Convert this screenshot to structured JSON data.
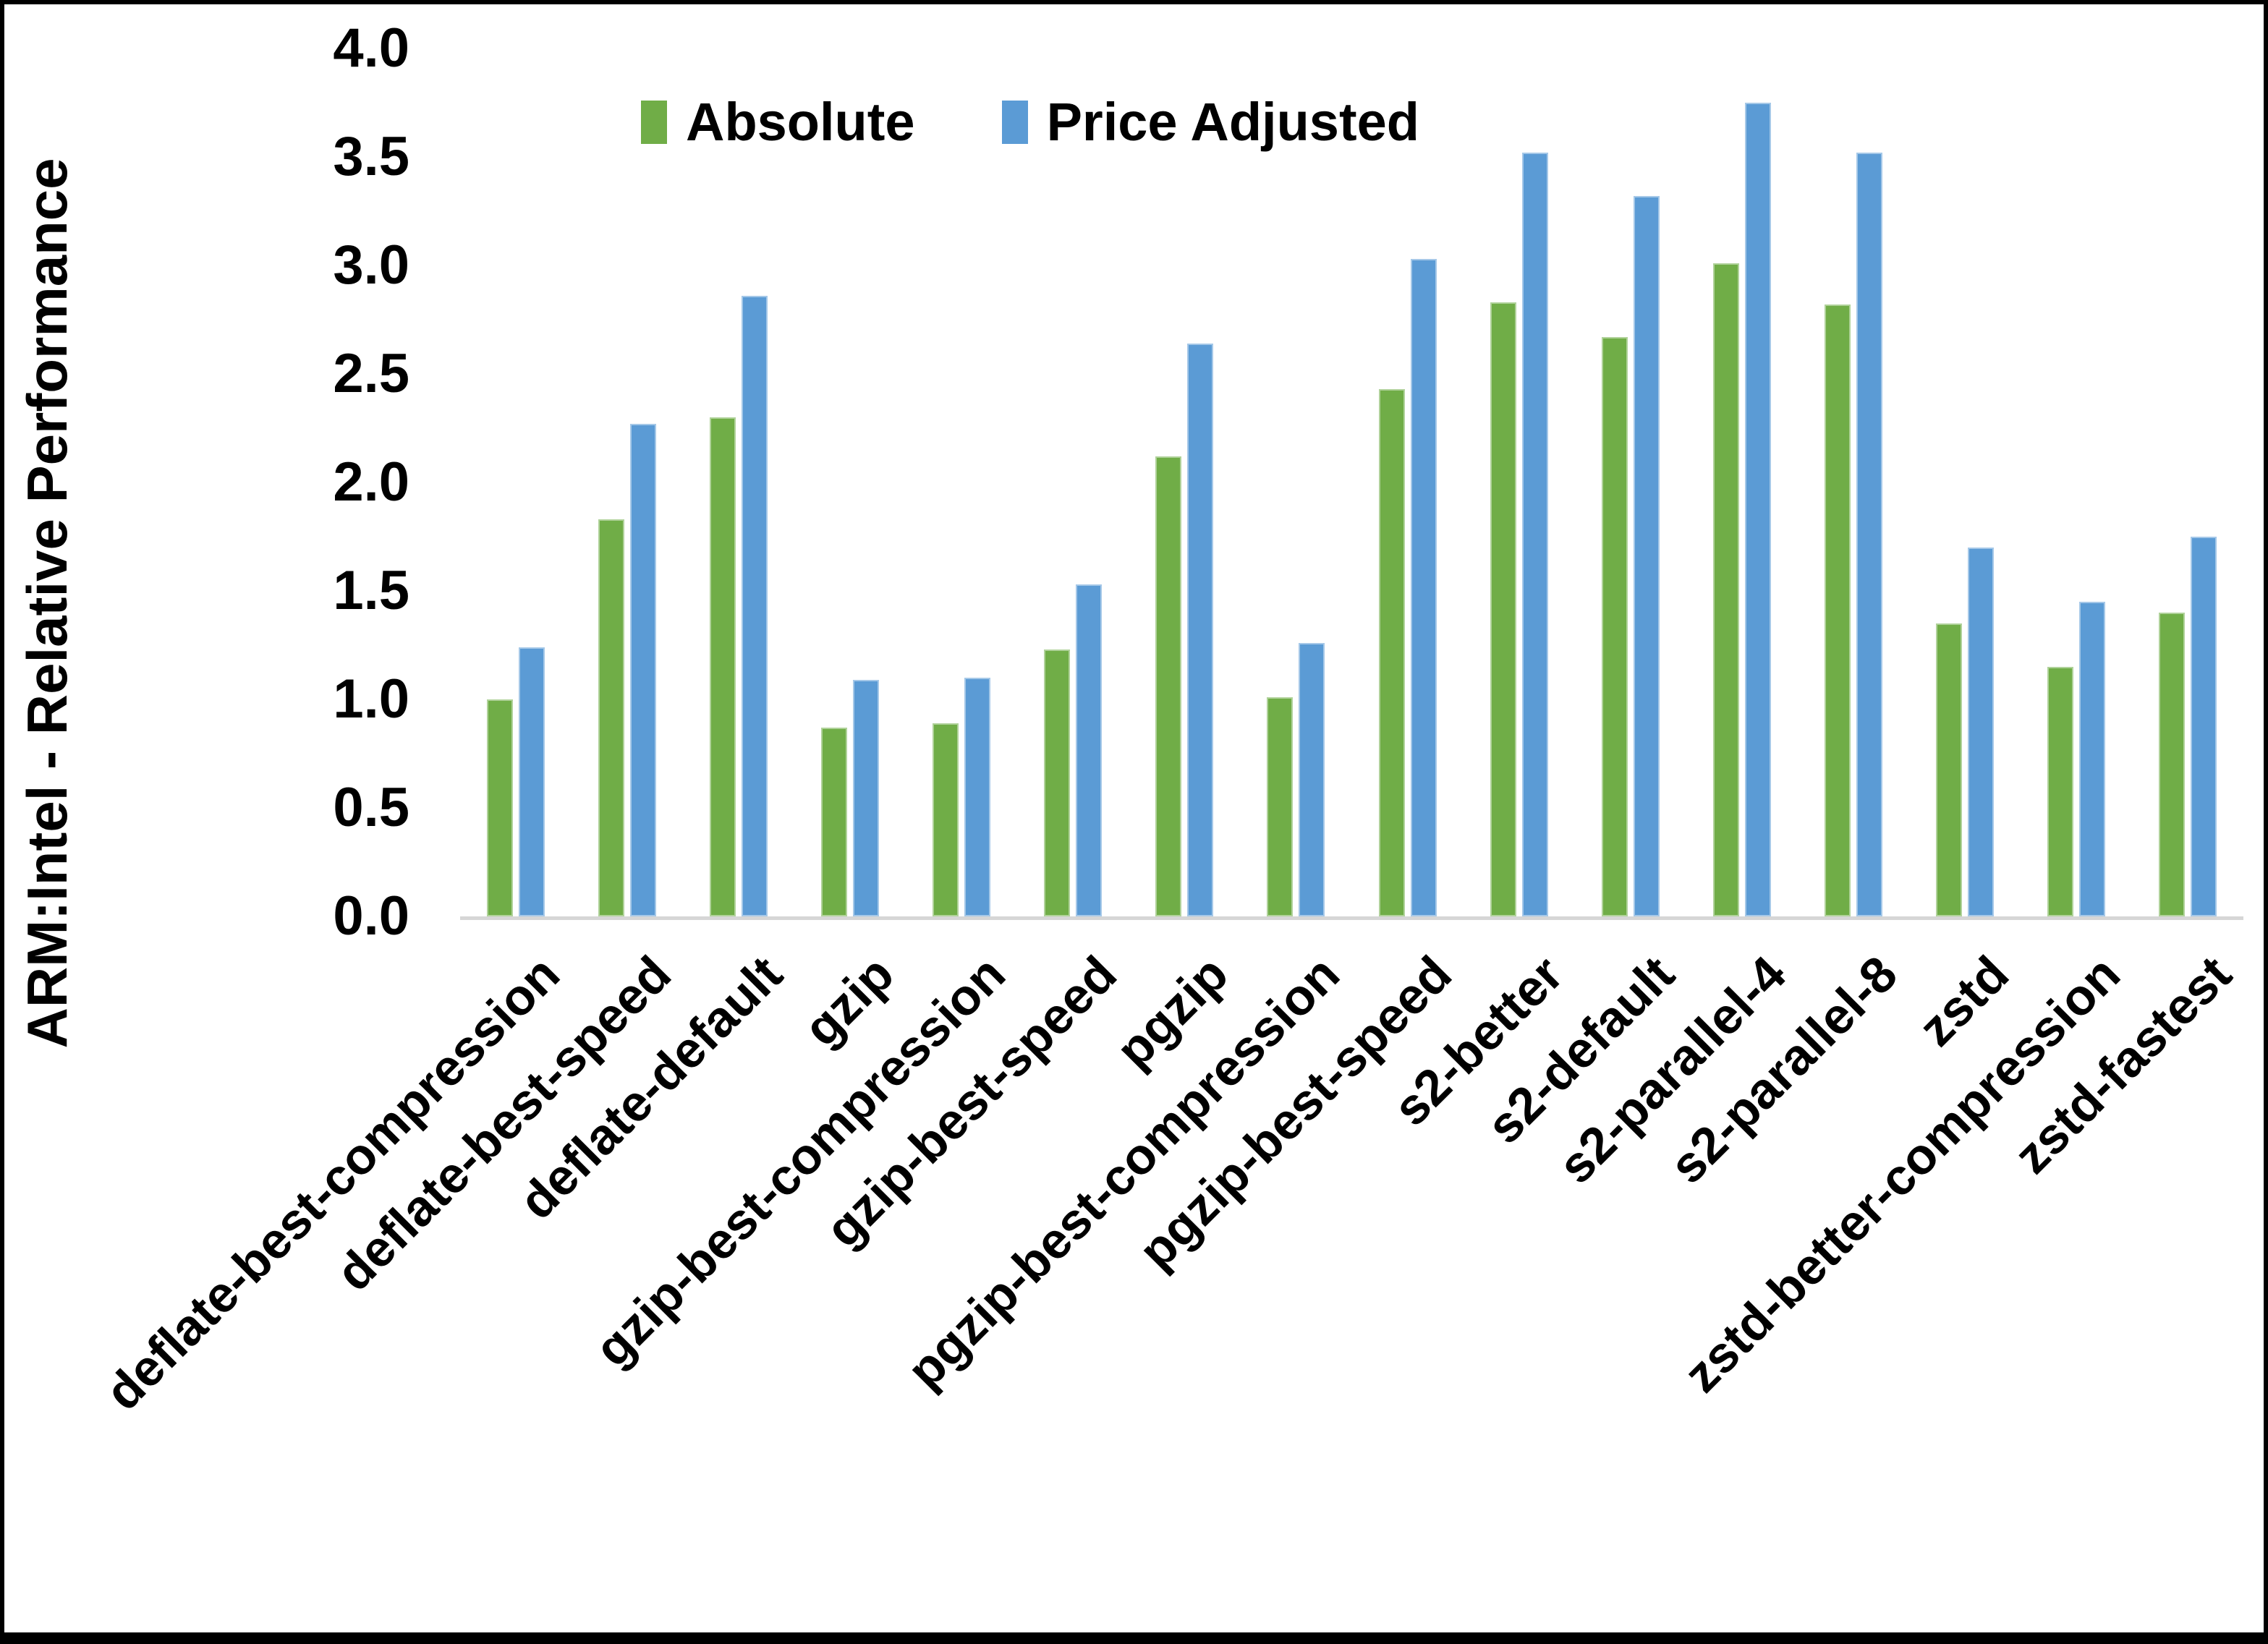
{
  "chart_data": {
    "type": "bar",
    "title": "",
    "ylabel": "ARM:Intel - Relative Performance",
    "xlabel": "",
    "ylim": [
      0,
      4
    ],
    "ytick_step": 0.5,
    "grid": false,
    "legend_position": "top-center",
    "axis_line_color": "#d6d6d6",
    "categories": [
      "deflate-best-compression",
      "deflate-best-speed",
      "deflate-default",
      "gzip",
      "gzip-best-compression",
      "gzip-best-speed",
      "pgzip",
      "pgzip-best-compression",
      "pgzip-best-speed",
      "s2-better",
      "s2-default",
      "s2-parallel-4",
      "s2-parallel-8",
      "zstd",
      "zstd-better-compression",
      "zstd-fastest"
    ],
    "series": [
      {
        "name": "Absolute",
        "color": "#70AD47",
        "values": [
          1.0,
          1.83,
          2.3,
          0.87,
          0.89,
          1.23,
          2.12,
          1.01,
          2.43,
          2.83,
          2.67,
          3.01,
          2.82,
          1.35,
          1.15,
          1.4
        ]
      },
      {
        "name": "Price Adjusted",
        "color": "#5B9BD5",
        "values": [
          1.24,
          2.27,
          2.86,
          1.09,
          1.1,
          1.53,
          2.64,
          1.26,
          3.03,
          3.52,
          3.32,
          3.75,
          3.52,
          1.7,
          1.45,
          1.75
        ]
      }
    ]
  }
}
